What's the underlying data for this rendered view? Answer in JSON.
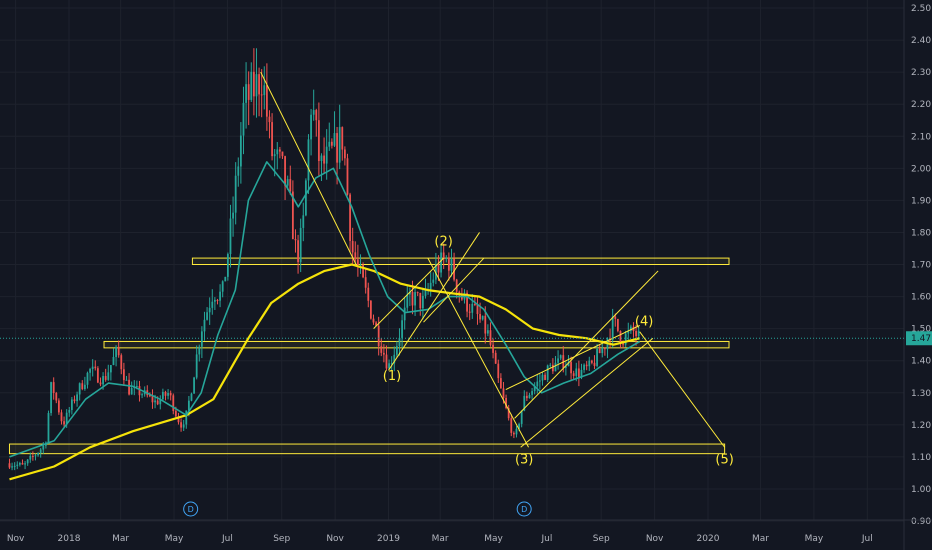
{
  "chart_data": {
    "type": "candlestick",
    "y_axis": {
      "side": "right",
      "range": [
        0.9,
        2.5
      ],
      "ticks": [
        "2.50",
        "2.40",
        "2.30",
        "2.20",
        "2.10",
        "2.00",
        "1.90",
        "1.80",
        "1.70",
        "1.60",
        "1.50",
        "1.40",
        "1.30",
        "1.20",
        "1.10",
        "1.00",
        "0.90"
      ],
      "last_price_label": "1.47",
      "last_price": 1.47
    },
    "x_axis": {
      "ticks": [
        "Nov",
        "2018",
        "Mar",
        "May",
        "Jul",
        "Sep",
        "Nov",
        "2019",
        "Mar",
        "May",
        "Jul",
        "Sep",
        "Nov",
        "2020",
        "Mar",
        "May",
        "Jul"
      ]
    },
    "grid": true,
    "colors": {
      "background": "#131722",
      "grid": "#1e222d",
      "up": "#26a69a",
      "down": "#ef5350",
      "ma_fast": "#26a69a",
      "ma_slow": "#f5e30a",
      "annotation": "#ffeb3b",
      "dividend_marker": "#42a5f5",
      "price_tag": "#26a69a"
    },
    "price_path": [
      [
        "2017-10-25",
        1.08
      ],
      [
        "2017-11-10",
        1.07
      ],
      [
        "2017-12-05",
        1.14
      ],
      [
        "2017-12-12",
        1.33
      ],
      [
        "2017-12-25",
        1.2
      ],
      [
        "2018-01-10",
        1.3
      ],
      [
        "2018-01-25",
        1.37
      ],
      [
        "2018-02-10",
        1.34
      ],
      [
        "2018-02-25",
        1.43
      ],
      [
        "2018-03-10",
        1.31
      ],
      [
        "2018-03-25",
        1.3
      ],
      [
        "2018-04-10",
        1.27
      ],
      [
        "2018-04-25",
        1.3
      ],
      [
        "2018-05-05",
        1.22
      ],
      [
        "2018-05-12",
        1.19
      ],
      [
        "2018-05-20",
        1.3
      ],
      [
        "2018-06-01",
        1.5
      ],
      [
        "2018-06-15",
        1.62
      ],
      [
        "2018-06-25",
        1.6
      ],
      [
        "2018-07-08",
        1.88
      ],
      [
        "2018-07-20",
        2.2
      ],
      [
        "2018-08-01",
        2.25
      ],
      [
        "2018-08-10",
        2.29
      ],
      [
        "2018-08-20",
        2.05
      ],
      [
        "2018-09-01",
        2.0
      ],
      [
        "2018-09-10",
        1.9
      ],
      [
        "2018-09-18",
        1.72
      ],
      [
        "2018-09-25",
        1.8
      ],
      [
        "2018-10-05",
        2.22
      ],
      [
        "2018-10-15",
        2.0
      ],
      [
        "2018-10-30",
        2.05
      ],
      [
        "2018-11-10",
        2.1
      ],
      [
        "2018-11-20",
        1.75
      ],
      [
        "2018-12-05",
        1.62
      ],
      [
        "2018-12-20",
        1.48
      ],
      [
        "2019-01-01",
        1.38
      ],
      [
        "2019-01-10",
        1.45
      ],
      [
        "2019-01-25",
        1.6
      ],
      [
        "2019-02-10",
        1.58
      ],
      [
        "2019-02-25",
        1.69
      ],
      [
        "2019-03-10",
        1.72
      ],
      [
        "2019-03-25",
        1.6
      ],
      [
        "2019-04-10",
        1.55
      ],
      [
        "2019-04-25",
        1.48
      ],
      [
        "2019-05-05",
        1.35
      ],
      [
        "2019-05-15",
        1.25
      ],
      [
        "2019-05-25",
        1.15
      ],
      [
        "2019-06-05",
        1.28
      ],
      [
        "2019-06-20",
        1.33
      ],
      [
        "2019-07-05",
        1.38
      ],
      [
        "2019-07-20",
        1.4
      ],
      [
        "2019-08-05",
        1.36
      ],
      [
        "2019-08-20",
        1.38
      ],
      [
        "2019-09-05",
        1.45
      ],
      [
        "2019-09-15",
        1.52
      ],
      [
        "2019-09-25",
        1.47
      ],
      [
        "2019-10-08",
        1.49
      ],
      [
        "2019-10-15",
        1.47
      ]
    ],
    "ma_fast": [
      [
        "2017-10-25",
        1.1
      ],
      [
        "2017-12-15",
        1.15
      ],
      [
        "2018-01-20",
        1.28
      ],
      [
        "2018-02-15",
        1.33
      ],
      [
        "2018-03-15",
        1.32
      ],
      [
        "2018-04-15",
        1.28
      ],
      [
        "2018-05-15",
        1.23
      ],
      [
        "2018-06-01",
        1.3
      ],
      [
        "2018-06-20",
        1.48
      ],
      [
        "2018-07-10",
        1.62
      ],
      [
        "2018-07-25",
        1.9
      ],
      [
        "2018-08-15",
        2.02
      ],
      [
        "2018-09-05",
        1.95
      ],
      [
        "2018-09-20",
        1.88
      ],
      [
        "2018-10-10",
        1.97
      ],
      [
        "2018-10-30",
        2.0
      ],
      [
        "2018-11-20",
        1.88
      ],
      [
        "2018-12-10",
        1.73
      ],
      [
        "2018-12-31",
        1.6
      ],
      [
        "2019-01-20",
        1.55
      ],
      [
        "2019-02-15",
        1.56
      ],
      [
        "2019-03-10",
        1.6
      ],
      [
        "2019-04-01",
        1.6
      ],
      [
        "2019-04-20",
        1.56
      ],
      [
        "2019-05-15",
        1.45
      ],
      [
        "2019-06-05",
        1.35
      ],
      [
        "2019-06-25",
        1.3
      ],
      [
        "2019-07-20",
        1.33
      ],
      [
        "2019-08-20",
        1.36
      ],
      [
        "2019-09-20",
        1.42
      ],
      [
        "2019-10-15",
        1.46
      ]
    ],
    "ma_slow": [
      [
        "2017-10-25",
        1.03
      ],
      [
        "2017-12-15",
        1.07
      ],
      [
        "2018-01-25",
        1.13
      ],
      [
        "2018-03-15",
        1.18
      ],
      [
        "2018-05-15",
        1.23
      ],
      [
        "2018-06-15",
        1.28
      ],
      [
        "2018-07-10",
        1.4
      ],
      [
        "2018-07-25",
        1.47
      ],
      [
        "2018-08-20",
        1.58
      ],
      [
        "2018-09-20",
        1.64
      ],
      [
        "2018-10-20",
        1.68
      ],
      [
        "2018-11-20",
        1.7
      ],
      [
        "2018-12-15",
        1.68
      ],
      [
        "2019-01-15",
        1.64
      ],
      [
        "2019-02-15",
        1.62
      ],
      [
        "2019-03-15",
        1.61
      ],
      [
        "2019-04-15",
        1.6
      ],
      [
        "2019-05-15",
        1.56
      ],
      [
        "2019-06-15",
        1.5
      ],
      [
        "2019-07-15",
        1.48
      ],
      [
        "2019-08-15",
        1.47
      ],
      [
        "2019-09-15",
        1.45
      ],
      [
        "2019-10-15",
        1.47
      ]
    ],
    "zones": [
      {
        "from": "2018-05-22",
        "to": "2020-01-25",
        "low": 1.7,
        "high": 1.72
      },
      {
        "from": "2018-02-10",
        "to": "2020-01-25",
        "low": 1.44,
        "high": 1.46
      },
      {
        "from": "2017-10-25",
        "to": "2020-01-20",
        "low": 1.11,
        "high": 1.14
      }
    ],
    "trendlines": [
      {
        "from": [
          "2018-08-08",
          2.3
        ],
        "to": [
          "2018-11-25",
          1.7
        ]
      },
      {
        "from": [
          "2019-01-01",
          1.37
        ],
        "to": [
          "2019-04-15",
          1.8
        ]
      },
      {
        "from": [
          "2018-12-15",
          1.5
        ],
        "to": [
          "2019-03-05",
          1.72
        ]
      },
      {
        "from": [
          "2019-02-10",
          1.52
        ],
        "to": [
          "2019-04-20",
          1.72
        ]
      },
      {
        "from": [
          "2019-02-15",
          1.72
        ],
        "to": [
          "2019-06-10",
          1.13
        ]
      },
      {
        "from": [
          "2019-06-01",
          1.13
        ],
        "to": [
          "2019-10-30",
          1.47
        ]
      },
      {
        "from": [
          "2019-05-25",
          1.22
        ],
        "to": [
          "2019-11-05",
          1.68
        ]
      },
      {
        "from": [
          "2019-05-15",
          1.31
        ],
        "to": [
          "2019-10-15",
          1.51
        ]
      },
      {
        "from": [
          "2019-10-15",
          1.49
        ],
        "to": [
          "2020-01-20",
          1.13
        ]
      }
    ],
    "wave_labels": [
      {
        "label": "(1)",
        "date": "2019-01-05",
        "price": 1.34
      },
      {
        "label": "(2)",
        "date": "2019-03-05",
        "price": 1.76
      },
      {
        "label": "(3)",
        "date": "2019-06-05",
        "price": 1.08
      },
      {
        "label": "(4)",
        "date": "2019-10-20",
        "price": 1.51
      },
      {
        "label": "(5)",
        "date": "2020-01-20",
        "price": 1.08
      }
    ],
    "dividend_markers": [
      {
        "label": "D",
        "date": "2018-05-20"
      },
      {
        "label": "D",
        "date": "2019-06-05"
      }
    ]
  }
}
